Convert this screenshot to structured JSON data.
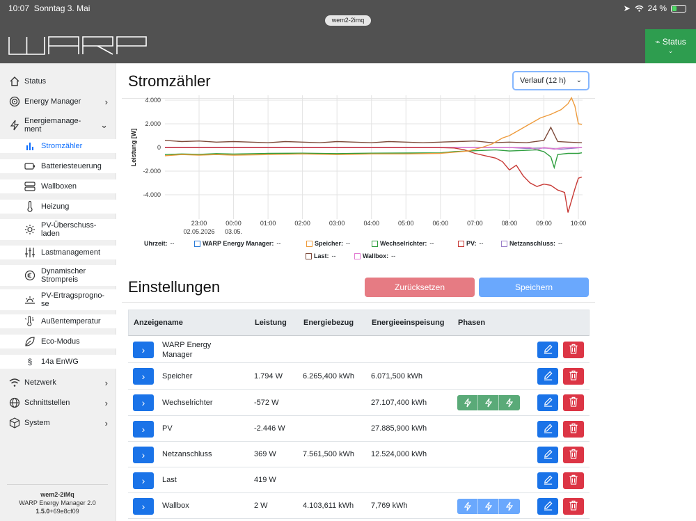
{
  "status_bar": {
    "time": "10:07",
    "date": "Sonntag 3. Mai",
    "battery": "24 %"
  },
  "header": {
    "url": "wem2-2imq",
    "logo": "WARP",
    "status_button": "Status"
  },
  "sidebar": {
    "items": [
      {
        "label": "Status",
        "icon": "home-icon"
      },
      {
        "label": "Energy Manager",
        "icon": "target-icon"
      },
      {
        "label": "Energiemanage-",
        "label2": "ment",
        "icon": "bolt-icon"
      },
      {
        "label": "Netzwerk",
        "icon": "wifi-icon"
      },
      {
        "label": "Schnittstellen",
        "icon": "globe-icon"
      },
      {
        "label": "System",
        "icon": "box-icon"
      }
    ],
    "sub_items": [
      {
        "label": "Stromzähler",
        "icon": "bar-chart-icon"
      },
      {
        "label": "Batteriesteuerung",
        "icon": "battery-icon"
      },
      {
        "label": "Wallboxen",
        "icon": "server-icon"
      },
      {
        "label": "Heizung",
        "icon": "thermometer-icon"
      },
      {
        "label": "PV-Überschuss-",
        "label2": "laden",
        "icon": "sun-icon"
      },
      {
        "label": "Lastmanagement",
        "icon": "sliders-icon"
      },
      {
        "label": "Dynamischer",
        "label2": "Strompreis",
        "icon": "euro-clock-icon"
      },
      {
        "label": "PV-Ertragsprogno-",
        "label2": "se",
        "icon": "sunrise-icon"
      },
      {
        "label": "Außentemperatur",
        "icon": "thermometer-sun-icon"
      },
      {
        "label": "Eco-Modus",
        "icon": "leaf-icon"
      },
      {
        "label": "14a EnWG",
        "icon": "paragraph-icon"
      }
    ],
    "footer": {
      "name": "wem2-2iMq",
      "product": "WARP Energy Manager 2.0",
      "version": "1.5.0",
      "build": "+69e8cf09"
    }
  },
  "page": {
    "title": "Stromzähler",
    "select_value": "Verlauf (12 h)",
    "settings_title": "Einstellungen",
    "reset_label": "Zurücksetzen",
    "save_label": "Speichern"
  },
  "chart_data": {
    "type": "line",
    "ylabel": "Leistung [W]",
    "ylim": [
      -5500,
      4200
    ],
    "yticks": [
      "4.000",
      "2.000",
      "0",
      "-2.000",
      "-4.000"
    ],
    "ytick_values": [
      4000,
      2000,
      0,
      -2000,
      -4000
    ],
    "xtick_labels": [
      "23:00",
      "00:00",
      "01:00",
      "02:00",
      "03:00",
      "04:00",
      "05:00",
      "06:00",
      "07:00",
      "08:00",
      "09:00",
      "10:00"
    ],
    "xtick_dates": [
      "02.05.2026",
      "03.05.",
      "",
      "",
      "",
      "",
      "",
      "",
      "",
      "",
      "",
      ""
    ],
    "x_hours": [
      -1,
      0,
      1,
      2,
      3,
      4,
      5,
      6,
      7,
      8,
      9,
      10
    ],
    "legend": [
      {
        "name": "Uhrzeit:",
        "value": "--"
      },
      {
        "name": "WARP Energy Manager:",
        "value": "--",
        "color": "#2b7bd8"
      },
      {
        "name": "Speicher:",
        "value": "--",
        "color": "#ee9b3c"
      },
      {
        "name": "Wechselrichter:",
        "value": "--",
        "color": "#2e9e3e"
      },
      {
        "name": "PV:",
        "value": "--",
        "color": "#c83a36"
      },
      {
        "name": "Netzanschluss:",
        "value": "--",
        "color": "#9a7fc9"
      },
      {
        "name": "Last:",
        "value": "--",
        "color": "#7d4a3a"
      },
      {
        "name": "Wallbox:",
        "value": "--",
        "color": "#e27ad2"
      }
    ],
    "series": [
      {
        "name": "Speicher",
        "color": "#ee9b3c",
        "points": [
          [
            -2.0,
            -700
          ],
          [
            -1.5,
            -600
          ],
          [
            -1.0,
            -650
          ],
          [
            -0.5,
            -600
          ],
          [
            0,
            -650
          ],
          [
            1,
            -600
          ],
          [
            2,
            -550
          ],
          [
            3,
            -600
          ],
          [
            4,
            -550
          ],
          [
            5,
            -550
          ],
          [
            6,
            -500
          ],
          [
            6.4,
            -400
          ],
          [
            6.8,
            -300
          ],
          [
            7.2,
            0
          ],
          [
            7.5,
            300
          ],
          [
            7.8,
            800
          ],
          [
            8.0,
            1000
          ],
          [
            8.3,
            1500
          ],
          [
            8.6,
            2000
          ],
          [
            8.9,
            2500
          ],
          [
            9.2,
            2800
          ],
          [
            9.5,
            3200
          ],
          [
            9.7,
            3700
          ],
          [
            9.8,
            4200
          ],
          [
            9.9,
            3500
          ],
          [
            10.0,
            2000
          ],
          [
            10.1,
            1950
          ]
        ]
      },
      {
        "name": "Wechselrichter",
        "color": "#2e9e3e",
        "points": [
          [
            -2.0,
            -600
          ],
          [
            -1.5,
            -550
          ],
          [
            -1.0,
            -580
          ],
          [
            -0.5,
            -520
          ],
          [
            0,
            -560
          ],
          [
            1,
            -500
          ],
          [
            2,
            -480
          ],
          [
            3,
            -520
          ],
          [
            4,
            -480
          ],
          [
            5,
            -470
          ],
          [
            6,
            -450
          ],
          [
            6.4,
            -350
          ],
          [
            6.8,
            -300
          ],
          [
            7.2,
            -250
          ],
          [
            7.6,
            -200
          ],
          [
            8.0,
            -300
          ],
          [
            8.4,
            -250
          ],
          [
            8.8,
            -200
          ],
          [
            9.0,
            -350
          ],
          [
            9.2,
            -800
          ],
          [
            9.3,
            -1700
          ],
          [
            9.4,
            -600
          ],
          [
            9.7,
            -500
          ],
          [
            10.0,
            -500
          ],
          [
            10.1,
            -450
          ]
        ]
      },
      {
        "name": "PV",
        "color": "#c83a36",
        "points": [
          [
            -2.0,
            -20
          ],
          [
            0,
            -20
          ],
          [
            2,
            -20
          ],
          [
            4,
            -20
          ],
          [
            6,
            -20
          ],
          [
            6.4,
            -50
          ],
          [
            6.7,
            -200
          ],
          [
            7.0,
            -500
          ],
          [
            7.3,
            -700
          ],
          [
            7.6,
            -900
          ],
          [
            7.8,
            -1200
          ],
          [
            8.0,
            -1900
          ],
          [
            8.2,
            -1500
          ],
          [
            8.4,
            -2400
          ],
          [
            8.6,
            -3000
          ],
          [
            8.8,
            -3300
          ],
          [
            9.0,
            -3100
          ],
          [
            9.2,
            -3200
          ],
          [
            9.4,
            -3600
          ],
          [
            9.6,
            -3800
          ],
          [
            9.7,
            -5500
          ],
          [
            9.8,
            -4500
          ],
          [
            9.9,
            -3500
          ],
          [
            10.0,
            -2600
          ],
          [
            10.1,
            -2500
          ]
        ]
      },
      {
        "name": "Last",
        "color": "#7d4a3a",
        "points": [
          [
            -2.0,
            600
          ],
          [
            -1.5,
            500
          ],
          [
            -1.0,
            550
          ],
          [
            -0.5,
            450
          ],
          [
            0,
            500
          ],
          [
            0.5,
            450
          ],
          [
            1,
            400
          ],
          [
            1.5,
            500
          ],
          [
            2,
            450
          ],
          [
            2.5,
            400
          ],
          [
            3,
            500
          ],
          [
            3.5,
            450
          ],
          [
            4,
            400
          ],
          [
            4.5,
            500
          ],
          [
            5,
            450
          ],
          [
            5.5,
            400
          ],
          [
            6,
            450
          ],
          [
            6.5,
            500
          ],
          [
            7,
            550
          ],
          [
            7.5,
            400
          ],
          [
            8,
            450
          ],
          [
            8.5,
            400
          ],
          [
            9.0,
            600
          ],
          [
            9.2,
            1700
          ],
          [
            9.4,
            500
          ],
          [
            9.7,
            450
          ],
          [
            10.1,
            400
          ]
        ]
      },
      {
        "name": "Netzanschluss",
        "color": "#9a7fc9",
        "points": [
          [
            -2.0,
            0
          ],
          [
            7.0,
            0
          ],
          [
            8.0,
            0
          ],
          [
            8.5,
            -80
          ],
          [
            9.0,
            -50
          ],
          [
            9.5,
            -150
          ],
          [
            10.1,
            0
          ]
        ]
      },
      {
        "name": "Wallbox",
        "color": "#e27ad2",
        "points": [
          [
            -2.0,
            0
          ],
          [
            8.6,
            0
          ],
          [
            8.8,
            -200
          ],
          [
            9.0,
            0
          ],
          [
            9.3,
            -150
          ],
          [
            9.6,
            0
          ],
          [
            10.1,
            0
          ]
        ]
      }
    ]
  },
  "table": {
    "headers": [
      "Anzeigename",
      "Leistung",
      "Energiebezug",
      "Energieeinspeisung",
      "Phasen"
    ],
    "rows": [
      {
        "name": "WARP Energy",
        "name2": "Manager",
        "power": "",
        "import": "",
        "export": "",
        "phases": ""
      },
      {
        "name": "Speicher",
        "name2": "",
        "power": "1.794 W",
        "import": "6.265,400 kWh",
        "export": "6.071,500 kWh",
        "phases": ""
      },
      {
        "name": "Wechselrichter",
        "name2": "",
        "power": "-572 W",
        "import": "",
        "export": "27.107,400 kWh",
        "phases": "green"
      },
      {
        "name": "PV",
        "name2": "",
        "power": "-2.446 W",
        "import": "",
        "export": "27.885,900 kWh",
        "phases": ""
      },
      {
        "name": "Netzanschluss",
        "name2": "",
        "power": "369 W",
        "import": "7.561,500 kWh",
        "export": "12.524,000 kWh",
        "phases": ""
      },
      {
        "name": "Last",
        "name2": "",
        "power": "419 W",
        "import": "",
        "export": "",
        "phases": ""
      },
      {
        "name": "Wallbox",
        "name2": "",
        "power": "2 W",
        "import": "4.103,611 kWh",
        "export": "7,769 kWh",
        "phases": "blue"
      }
    ]
  }
}
